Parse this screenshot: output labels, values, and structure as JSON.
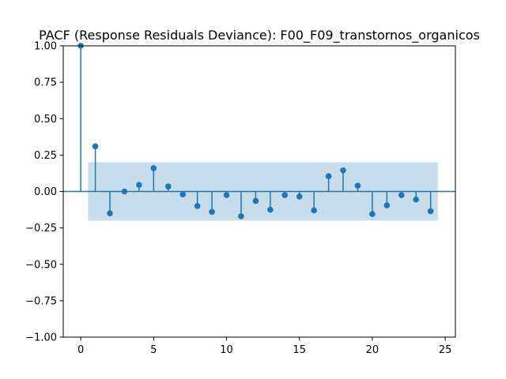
{
  "chart_data": {
    "type": "stem",
    "title": "PACF (Response Residuals Deviance): F00_F09_transtornos_organicos",
    "xlabel": "",
    "ylabel": "",
    "xlim": [
      -1.2,
      25.7
    ],
    "ylim": [
      -1.0,
      1.0
    ],
    "xticks": [
      0,
      5,
      10,
      15,
      20,
      25
    ],
    "yticks": [
      -1.0,
      -0.75,
      -0.5,
      -0.25,
      0.0,
      0.25,
      0.5,
      0.75,
      1.0
    ],
    "xtick_labels": [
      "0",
      "5",
      "10",
      "15",
      "20",
      "25"
    ],
    "ytick_labels": [
      "−1.00",
      "−0.75",
      "−0.50",
      "−0.25",
      "0.00",
      "0.25",
      "0.50",
      "0.75",
      "1.00"
    ],
    "lags": [
      0,
      1,
      2,
      3,
      4,
      5,
      6,
      7,
      8,
      9,
      10,
      11,
      12,
      13,
      14,
      15,
      16,
      17,
      18,
      19,
      20,
      21,
      22,
      23,
      24
    ],
    "values": [
      1.0,
      0.31,
      -0.15,
      0.0,
      0.045,
      0.16,
      0.035,
      -0.02,
      -0.1,
      -0.14,
      -0.025,
      -0.17,
      -0.065,
      -0.125,
      -0.025,
      -0.035,
      -0.13,
      0.105,
      0.145,
      0.04,
      -0.155,
      -0.095,
      -0.025,
      -0.055,
      -0.135
    ],
    "confidence_band": {
      "x_range": [
        0.5,
        24.5
      ],
      "lower": -0.2,
      "upper": 0.2
    },
    "grid": false,
    "colors": {
      "stem": "#1f77b4",
      "band": "#1f77b4",
      "band_opacity": 0.25
    }
  }
}
